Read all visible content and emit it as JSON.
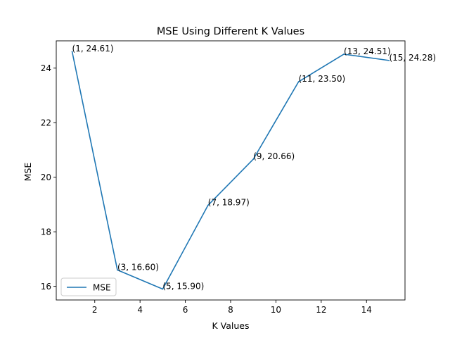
{
  "chart_data": {
    "type": "line",
    "title": "MSE Using Different K Values",
    "xlabel": "K Values",
    "ylabel": "MSE",
    "x": [
      1,
      3,
      5,
      7,
      9,
      11,
      13,
      15
    ],
    "series": [
      {
        "name": "MSE",
        "values": [
          24.61,
          16.6,
          15.9,
          18.97,
          20.66,
          23.5,
          24.51,
          24.28
        ]
      }
    ],
    "point_labels": [
      "(1, 24.61)",
      "(3, 16.60)",
      "(5, 15.90)",
      "(7, 18.97)",
      "(9, 20.66)",
      "(11, 23.50)",
      "(13, 24.51)",
      "(15, 24.28)"
    ],
    "x_ticks": [
      2,
      4,
      6,
      8,
      10,
      12,
      14
    ],
    "y_ticks": [
      16,
      18,
      20,
      22,
      24
    ],
    "xlim": [
      0.3,
      15.7
    ],
    "ylim": [
      15.5,
      25.0
    ],
    "grid": false,
    "legend_position": "bottom-left",
    "line_color": "#1f77b4"
  }
}
